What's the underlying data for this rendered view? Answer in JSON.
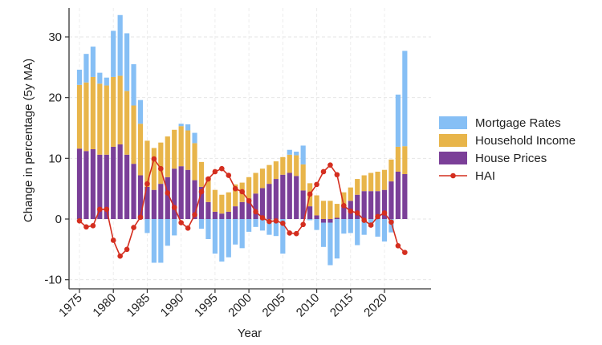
{
  "chart_data": {
    "type": "bar",
    "stacked": true,
    "title": "",
    "xlabel": "Year",
    "ylabel": "Change in percentage (5y MA)",
    "ylim": [
      -11.5,
      35
    ],
    "yticks": [
      -10,
      0,
      10,
      20,
      30
    ],
    "xticks": [
      1975,
      1980,
      1985,
      1990,
      1995,
      2000,
      2005,
      2010,
      2015,
      2020
    ],
    "grid": true,
    "legend_position": "right",
    "x": [
      1975,
      1976,
      1977,
      1978,
      1979,
      1980,
      1981,
      1982,
      1983,
      1984,
      1985,
      1986,
      1987,
      1988,
      1989,
      1990,
      1991,
      1992,
      1993,
      1994,
      1995,
      1996,
      1997,
      1998,
      1999,
      2000,
      2001,
      2002,
      2003,
      2004,
      2005,
      2006,
      2007,
      2008,
      2009,
      2010,
      2011,
      2012,
      2013,
      2014,
      2015,
      2016,
      2017,
      2018,
      2019,
      2020,
      2021,
      2022,
      2023
    ],
    "series": [
      {
        "name": "House Prices",
        "kind": "bar",
        "color": "#7b3f98",
        "values": [
          11.6,
          11.2,
          11.5,
          10.6,
          10.6,
          11.9,
          12.3,
          10.6,
          9.1,
          7.2,
          5.3,
          4.8,
          5.8,
          6.9,
          8.3,
          8.7,
          8.1,
          6.4,
          5.3,
          2.8,
          1.2,
          0.9,
          1.2,
          2.1,
          2.8,
          3.4,
          4.2,
          5.1,
          5.8,
          6.6,
          7.3,
          7.6,
          7.1,
          4.7,
          2.1,
          0.6,
          -0.6,
          -0.6,
          0.2,
          2.3,
          3.0,
          4.0,
          4.6,
          4.6,
          4.6,
          4.8,
          6.2,
          7.8,
          7.4
        ]
      },
      {
        "name": "Household Income",
        "kind": "bar",
        "color": "#e8b54a",
        "values": [
          10.5,
          11.3,
          11.9,
          11.7,
          11.4,
          11.5,
          11.3,
          10.5,
          9.6,
          8.5,
          7.6,
          6.9,
          6.8,
          6.7,
          6.4,
          6.6,
          6.5,
          6.1,
          4.1,
          4.1,
          3.6,
          3.1,
          3.2,
          3.6,
          3.2,
          3.5,
          3.4,
          3.2,
          3.1,
          2.9,
          2.9,
          3.0,
          3.4,
          4.3,
          3.8,
          3.3,
          3.0,
          3.0,
          2.3,
          2.1,
          2.2,
          2.6,
          2.6,
          3.0,
          3.2,
          3.3,
          3.6,
          4.1,
          4.6
        ]
      },
      {
        "name": "Mortgage Rates",
        "kind": "bar",
        "color": "#86bff5",
        "values": [
          2.5,
          4.7,
          5.0,
          1.8,
          1.3,
          7.6,
          10.0,
          9.5,
          6.8,
          3.9,
          -2.3,
          -7.2,
          -7.2,
          -4.4,
          -2.7,
          0.4,
          1.0,
          1.7,
          -1.6,
          -3.3,
          -5.7,
          -7.0,
          -6.3,
          -4.2,
          -4.8,
          -2.1,
          -1.3,
          -1.9,
          -2.6,
          -2.8,
          -5.7,
          0.8,
          0.6,
          3.1,
          -0.2,
          -1.8,
          -4.0,
          -7.0,
          -6.5,
          -2.4,
          -2.3,
          -4.3,
          -2.6,
          -1.3,
          -2.9,
          -3.7,
          -2.2,
          8.6,
          15.7
        ]
      },
      {
        "name": "HAI",
        "kind": "line",
        "color": "#d42e1f",
        "values": [
          -0.3,
          -1.3,
          -1.1,
          1.6,
          1.6,
          -3.5,
          -6.1,
          -5.0,
          -1.4,
          0.3,
          5.8,
          9.9,
          8.3,
          4.3,
          1.9,
          -0.6,
          -1.5,
          0.7,
          4.5,
          6.6,
          7.8,
          8.3,
          7.2,
          5.0,
          4.5,
          3.0,
          1.2,
          0.2,
          -0.4,
          -0.3,
          -0.7,
          -2.3,
          -2.4,
          -0.9,
          4.1,
          5.7,
          7.8,
          8.9,
          7.3,
          2.2,
          1.3,
          1.0,
          -0.2,
          -1.0,
          0.4,
          1.0,
          -0.5,
          -4.4,
          -5.5
        ]
      }
    ],
    "legend": [
      {
        "label": "Mortgage Rates",
        "type": "swatch",
        "color": "#86bff5"
      },
      {
        "label": "Household Income",
        "type": "swatch",
        "color": "#e8b54a"
      },
      {
        "label": "House Prices",
        "type": "swatch",
        "color": "#7b3f98"
      },
      {
        "label": "HAI",
        "type": "line-marker",
        "color": "#d42e1f"
      }
    ]
  }
}
